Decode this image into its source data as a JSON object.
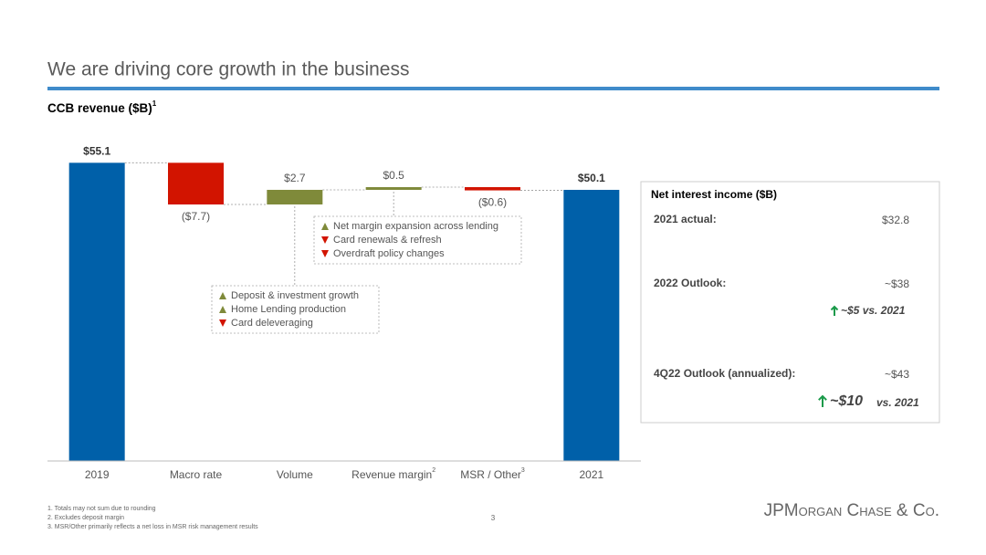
{
  "header": {
    "title": "We are driving core growth in the business",
    "subtitle": "CCB revenue ($B)",
    "subtitle_footnote": "1"
  },
  "chart_data": {
    "type": "waterfall",
    "categories": [
      "2019",
      "Macro rate",
      "Volume",
      "Revenue margin",
      "MSR / Other",
      "2021"
    ],
    "category_footnotes": [
      null,
      null,
      null,
      "2",
      "3",
      null
    ],
    "values": [
      55.1,
      -7.7,
      2.7,
      0.5,
      -0.6,
      50.1
    ],
    "value_labels": [
      "$55.1",
      "($7.7)",
      "$2.7",
      "$0.5",
      "($0.6)",
      "$50.1"
    ],
    "colors": {
      "total": "#0060a9",
      "increase": "#7f8a3a",
      "decrease": "#d21400"
    },
    "ylim": [
      0,
      56
    ],
    "annotations": [
      {
        "category": 2,
        "items": [
          {
            "text": "Deposit & investment growth",
            "direction": "up"
          },
          {
            "text": "Home Lending production",
            "direction": "up"
          },
          {
            "text": "Card deleveraging",
            "direction": "down"
          }
        ]
      },
      {
        "category": 3,
        "items": [
          {
            "text": "Net margin expansion across lending",
            "direction": "up"
          },
          {
            "text": "Card renewals & refresh",
            "direction": "down"
          },
          {
            "text": "Overdraft policy changes",
            "direction": "down"
          }
        ]
      }
    ]
  },
  "panel": {
    "title": "Net interest income ($B)",
    "rows": [
      {
        "label": "2021 actual:",
        "value": "$32.8"
      },
      {
        "label": "2022 Outlook:",
        "value": "~$38",
        "change": "~$5 vs. 2021"
      },
      {
        "label": "4Q22 Outlook (annualized):",
        "value": "~$43",
        "change": "~$10",
        "change_suffix": "vs. 2021"
      }
    ]
  },
  "footnotes": [
    "1. Totals may not sum due to rounding",
    "2. Excludes deposit margin",
    "3. MSR/Other primarily reflects a net loss in MSR risk management results"
  ],
  "page_number": "3",
  "logo": "JPMorgan Chase & Co."
}
